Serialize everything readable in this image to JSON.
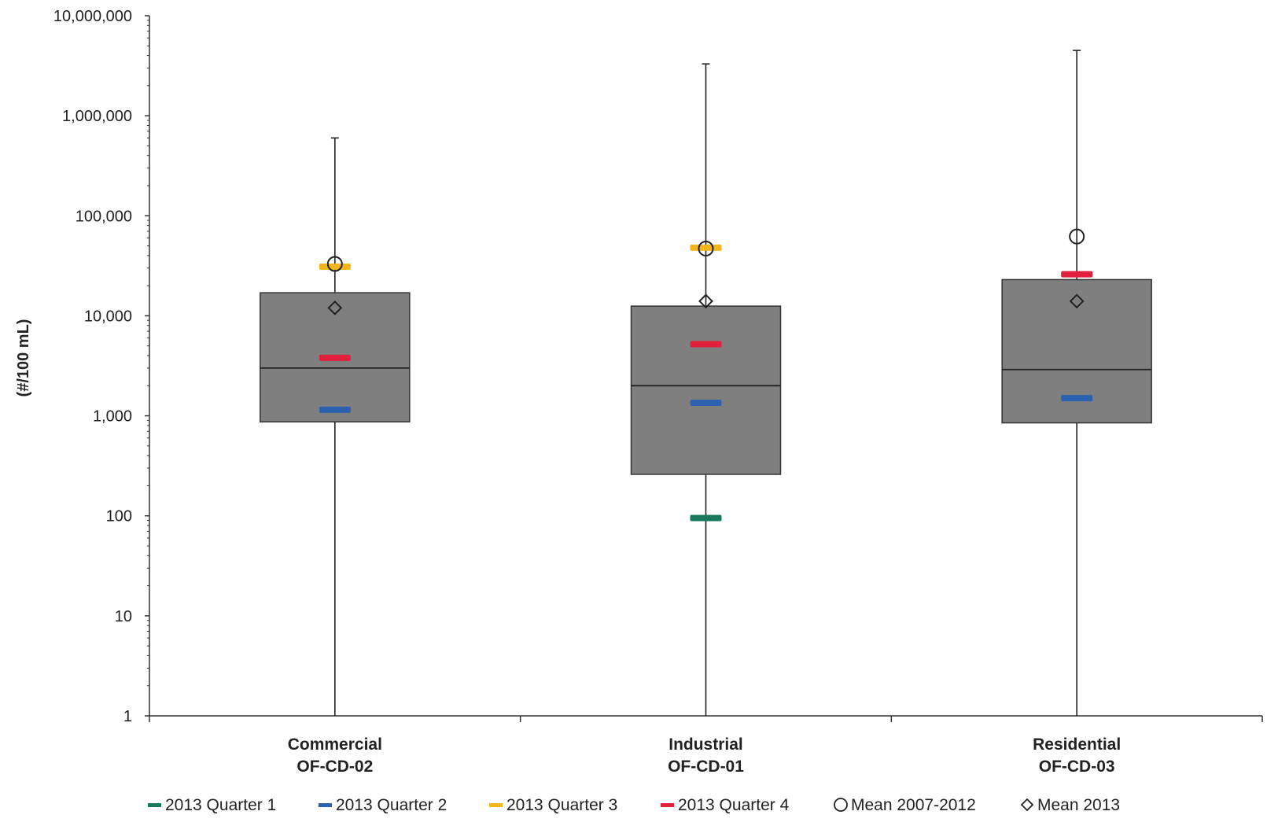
{
  "chart_data": {
    "type": "box",
    "ylabel": "(#/100 mL)",
    "xlabel": "",
    "yscale": "log",
    "ylim": [
      1,
      10000000
    ],
    "yticks": [
      {
        "value": 1,
        "label": "1"
      },
      {
        "value": 10,
        "label": "10"
      },
      {
        "value": 100,
        "label": "100"
      },
      {
        "value": 1000,
        "label": "1,000"
      },
      {
        "value": 10000,
        "label": "10,000"
      },
      {
        "value": 100000,
        "label": "100,000"
      },
      {
        "value": 1000000,
        "label": "1,000,000"
      },
      {
        "value": 10000000,
        "label": "10,000,000"
      }
    ],
    "categories": [
      {
        "line1": "Commercial",
        "line2": "OF-CD-02"
      },
      {
        "line1": "Industrial",
        "line2": "OF-CD-01"
      },
      {
        "line1": "Residential",
        "line2": "OF-CD-03"
      }
    ],
    "boxes": [
      {
        "min": 1,
        "q1": 870,
        "median": 3000,
        "q3": 17000,
        "max": 600000
      },
      {
        "min": 1,
        "q1": 260,
        "median": 2000,
        "q3": 12500,
        "max": 3300000
      },
      {
        "min": 1,
        "q1": 850,
        "median": 2900,
        "q3": 23000,
        "max": 4500000
      }
    ],
    "series": [
      {
        "name": "2013 Quarter 1",
        "marker": "dash",
        "color": "#17785a",
        "values": [
          null,
          95,
          null
        ]
      },
      {
        "name": "2013 Quarter 2",
        "marker": "dash",
        "color": "#2a62b0",
        "values": [
          1150,
          1350,
          1500
        ]
      },
      {
        "name": "2013 Quarter 3",
        "marker": "dash",
        "color": "#f2b51c",
        "values": [
          31000,
          48000,
          null
        ]
      },
      {
        "name": "2013 Quarter 4",
        "marker": "dash",
        "color": "#e0203c",
        "values": [
          3800,
          5200,
          26000
        ]
      },
      {
        "name": "Mean 2007-2012",
        "marker": "circle",
        "color": "#222222",
        "values": [
          33000,
          47000,
          62000
        ]
      },
      {
        "name": "Mean 2013",
        "marker": "diamond",
        "color": "#222222",
        "values": [
          12000,
          14000,
          14000
        ]
      }
    ],
    "box_color": "#7f7f7f",
    "grid": false,
    "legend": "bottom"
  }
}
